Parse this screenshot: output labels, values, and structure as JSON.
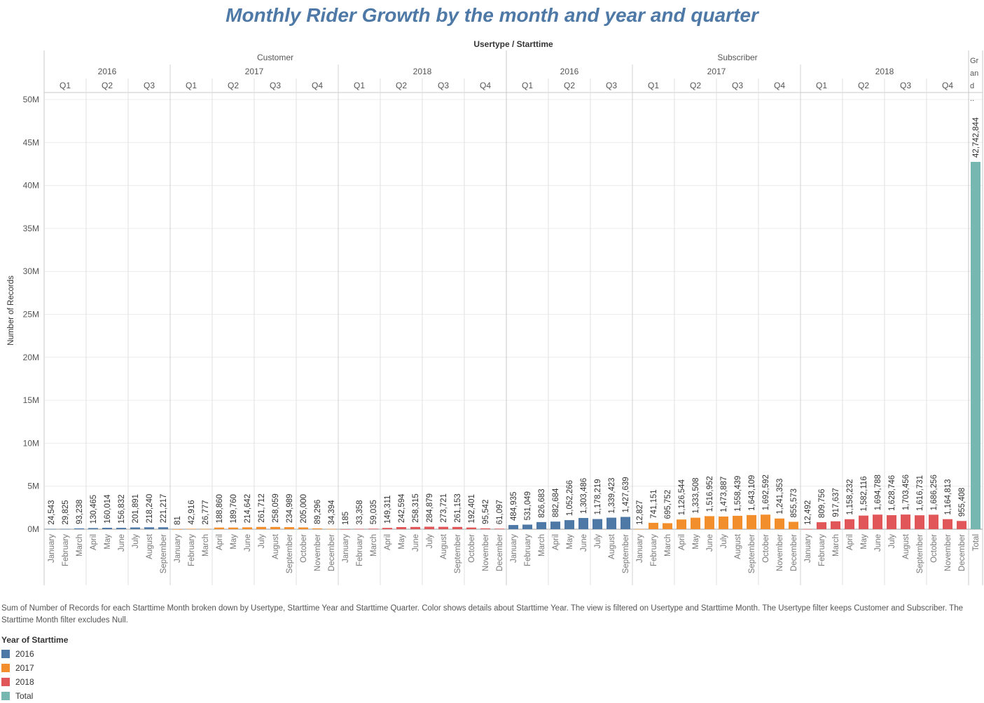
{
  "title": "Monthly Rider Growth by the month and year and quarter",
  "header_label": "Usertype / Starttime",
  "yaxis_label": "Number of Records",
  "y_ticks": [
    "0M",
    "5M",
    "10M",
    "15M",
    "20M",
    "25M",
    "30M",
    "35M",
    "40M",
    "45M",
    "50M"
  ],
  "total_header": "Gr an d ..",
  "caption": "Sum of Number of Records for each Starttime Month broken down by Usertype, Starttime Year and Starttime Quarter.  Color shows details about Starttime Year. The view is filtered on Usertype and Starttime Month. The Usertype filter keeps Customer and Subscriber. The Starttime Month filter excludes Null.",
  "legend": {
    "title": "Year of Starttime",
    "items": [
      {
        "label": "2016",
        "color": "#4e79a7"
      },
      {
        "label": "2017",
        "color": "#f28e2b"
      },
      {
        "label": "2018",
        "color": "#e15759"
      },
      {
        "label": "Total",
        "color": "#76b7b2"
      }
    ]
  },
  "chart_data": {
    "type": "bar",
    "ylabel": "Number of Records",
    "ylim": [
      0,
      50000000
    ],
    "grid": true,
    "groups": [
      {
        "usertype": "Customer",
        "years": [
          {
            "year": "2016",
            "quarters": [
              {
                "q": "Q1",
                "months": [
                  [
                    "January",
                    24543
                  ],
                  [
                    "February",
                    29825
                  ],
                  [
                    "March",
                    93238
                  ]
                ]
              },
              {
                "q": "Q2",
                "months": [
                  [
                    "April",
                    130465
                  ],
                  [
                    "May",
                    160014
                  ],
                  [
                    "June",
                    156832
                  ]
                ]
              },
              {
                "q": "Q3",
                "months": [
                  [
                    "July",
                    201891
                  ],
                  [
                    "August",
                    218240
                  ],
                  [
                    "September",
                    221217
                  ]
                ]
              }
            ]
          },
          {
            "year": "2017",
            "quarters": [
              {
                "q": "Q1",
                "months": [
                  [
                    "January",
                    81
                  ],
                  [
                    "February",
                    42916
                  ],
                  [
                    "March",
                    26777
                  ]
                ]
              },
              {
                "q": "Q2",
                "months": [
                  [
                    "April",
                    188860
                  ],
                  [
                    "May",
                    189760
                  ],
                  [
                    "June",
                    214642
                  ]
                ]
              },
              {
                "q": "Q3",
                "months": [
                  [
                    "July",
                    261712
                  ],
                  [
                    "August",
                    258059
                  ],
                  [
                    "September",
                    234989
                  ]
                ]
              },
              {
                "q": "Q4",
                "months": [
                  [
                    "October",
                    205000
                  ],
                  [
                    "November",
                    89296
                  ],
                  [
                    "December",
                    34394
                  ]
                ]
              }
            ]
          },
          {
            "year": "2018",
            "quarters": [
              {
                "q": "Q1",
                "months": [
                  [
                    "January",
                    185
                  ],
                  [
                    "February",
                    33358
                  ],
                  [
                    "March",
                    59035
                  ]
                ]
              },
              {
                "q": "Q2",
                "months": [
                  [
                    "April",
                    149311
                  ],
                  [
                    "May",
                    242594
                  ],
                  [
                    "June",
                    258315
                  ]
                ]
              },
              {
                "q": "Q3",
                "months": [
                  [
                    "July",
                    284879
                  ],
                  [
                    "August",
                    273721
                  ],
                  [
                    "September",
                    261153
                  ]
                ]
              },
              {
                "q": "Q4",
                "months": [
                  [
                    "October",
                    192401
                  ],
                  [
                    "November",
                    95542
                  ],
                  [
                    "December",
                    61097
                  ]
                ]
              }
            ]
          }
        ]
      },
      {
        "usertype": "Subscriber",
        "years": [
          {
            "year": "2016",
            "quarters": [
              {
                "q": "Q1",
                "months": [
                  [
                    "January",
                    484935
                  ],
                  [
                    "February",
                    531049
                  ],
                  [
                    "March",
                    826683
                  ]
                ]
              },
              {
                "q": "Q2",
                "months": [
                  [
                    "April",
                    882684
                  ],
                  [
                    "May",
                    1052266
                  ],
                  [
                    "June",
                    1303486
                  ]
                ]
              },
              {
                "q": "Q3",
                "months": [
                  [
                    "July",
                    1178219
                  ],
                  [
                    "August",
                    1339423
                  ],
                  [
                    "September",
                    1427639
                  ]
                ]
              }
            ]
          },
          {
            "year": "2017",
            "quarters": [
              {
                "q": "Q1",
                "months": [
                  [
                    "January",
                    12827
                  ],
                  [
                    "February",
                    741151
                  ],
                  [
                    "March",
                    695752
                  ]
                ]
              },
              {
                "q": "Q2",
                "months": [
                  [
                    "April",
                    1126544
                  ],
                  [
                    "May",
                    1333508
                  ],
                  [
                    "June",
                    1516952
                  ]
                ]
              },
              {
                "q": "Q3",
                "months": [
                  [
                    "July",
                    1473887
                  ],
                  [
                    "August",
                    1558439
                  ],
                  [
                    "September",
                    1643109
                  ]
                ]
              },
              {
                "q": "Q4",
                "months": [
                  [
                    "October",
                    1692592
                  ],
                  [
                    "November",
                    1241353
                  ],
                  [
                    "December",
                    855573
                  ]
                ]
              }
            ]
          },
          {
            "year": "2018",
            "quarters": [
              {
                "q": "Q1",
                "months": [
                  [
                    "January",
                    12492
                  ],
                  [
                    "February",
                    809756
                  ],
                  [
                    "March",
                    917637
                  ]
                ]
              },
              {
                "q": "Q2",
                "months": [
                  [
                    "April",
                    1158232
                  ],
                  [
                    "May",
                    1582116
                  ],
                  [
                    "June",
                    1694788
                  ]
                ]
              },
              {
                "q": "Q3",
                "months": [
                  [
                    "July",
                    1628746
                  ],
                  [
                    "August",
                    1703456
                  ],
                  [
                    "September",
                    1616731
                  ]
                ]
              },
              {
                "q": "Q4",
                "months": [
                  [
                    "October",
                    1686256
                  ],
                  [
                    "November",
                    1164813
                  ],
                  [
                    "December",
                    955408
                  ]
                ]
              }
            ]
          }
        ]
      }
    ],
    "total": {
      "label": "Total",
      "value": 42742844
    }
  }
}
